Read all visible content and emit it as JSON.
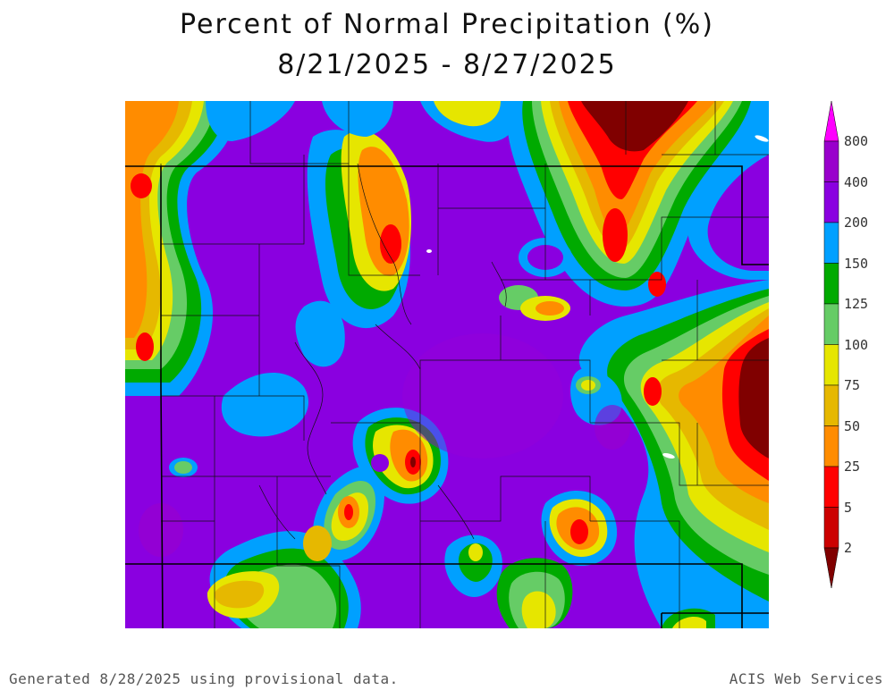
{
  "title": {
    "line1": "Percent of Normal Precipitation (%)",
    "line2": "8/21/2025 - 8/27/2025"
  },
  "legend": {
    "labels": [
      "800",
      "400",
      "200",
      "150",
      "125",
      "100",
      "75",
      "50",
      "25",
      "5",
      "2"
    ],
    "colors": [
      "#ff00ff",
      "#9900cc",
      "#8a00e0",
      "#00a0ff",
      "#00aa00",
      "#66cc66",
      "#e6e600",
      "#e6b800",
      "#ff8c00",
      "#ff0000",
      "#cc0000",
      "#800000"
    ]
  },
  "footer": {
    "left": "Generated 8/28/2025 using provisional data.",
    "right": "ACIS Web Services"
  }
}
